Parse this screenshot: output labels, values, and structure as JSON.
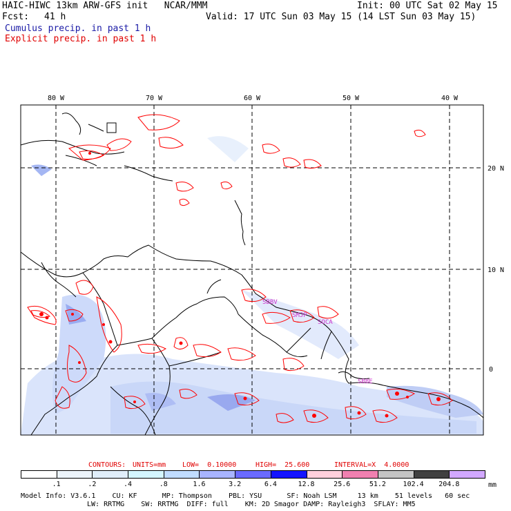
{
  "header": {
    "title": "HAIC-HIWC 13km ARW-GFS init   NCAR/MMM",
    "init": "Init: 00 UTC Sat 02 May 15",
    "fcst_label": "Fcst:",
    "fcst_value": "41 h",
    "valid": "Valid: 17 UTC Sun 03 May 15 (14 LST Sun 03 May 15)",
    "cumulus_legend": "Cumulus precip. in past 1 h",
    "explicit_legend": "Explicit precip. in past 1 h",
    "cumulus_color": "#1a1aa6",
    "explicit_color": "#e00000"
  },
  "map": {
    "lon_labels": [
      "80 W",
      "70 W",
      "60 W",
      "50 W",
      "40 W"
    ],
    "lat_labels": [
      "20 N",
      "10 N",
      "0"
    ],
    "station_labels": [
      "SBBV",
      "SMJP",
      "SOCA",
      "SBBE"
    ],
    "station_color": "#cc33cc",
    "outline_color": "#000000",
    "contour_color": "#ff0000"
  },
  "contours": {
    "label": "CONTOURS:",
    "units": "UNITS=mm",
    "low": "LOW=  0.10000",
    "high": "HIGH=  25.600",
    "interval": "INTERVAL=X  4.0000"
  },
  "colorbar": {
    "unit": "mm",
    "labels": [
      ".1",
      ".2",
      ".4",
      ".8",
      "1.6",
      "3.2",
      "6.4",
      "12.8",
      "25.6",
      "51.2",
      "102.4",
      "204.8"
    ],
    "colors": [
      "#ffffff",
      "#ecf4fb",
      "#e0eefa",
      "#d4f6ff",
      "#c0dcff",
      "#a8b4ff",
      "#6a6aff",
      "#1414ff",
      "#ffd0dc",
      "#f080b0",
      "#c4c4c4",
      "#404040",
      "#d2a8ff"
    ]
  },
  "model_info": {
    "line1": "Model Info: V3.6.1    CU: KF      MP: Thompson    PBL: YSU      SF: Noah LSM     13 km    51 levels   60 sec",
    "line2": "LW: RRTMG    SW: RRTMG  DIFF: full    KM: 2D Smagor DAMP: Rayleigh3  SFLAY: MM5"
  }
}
